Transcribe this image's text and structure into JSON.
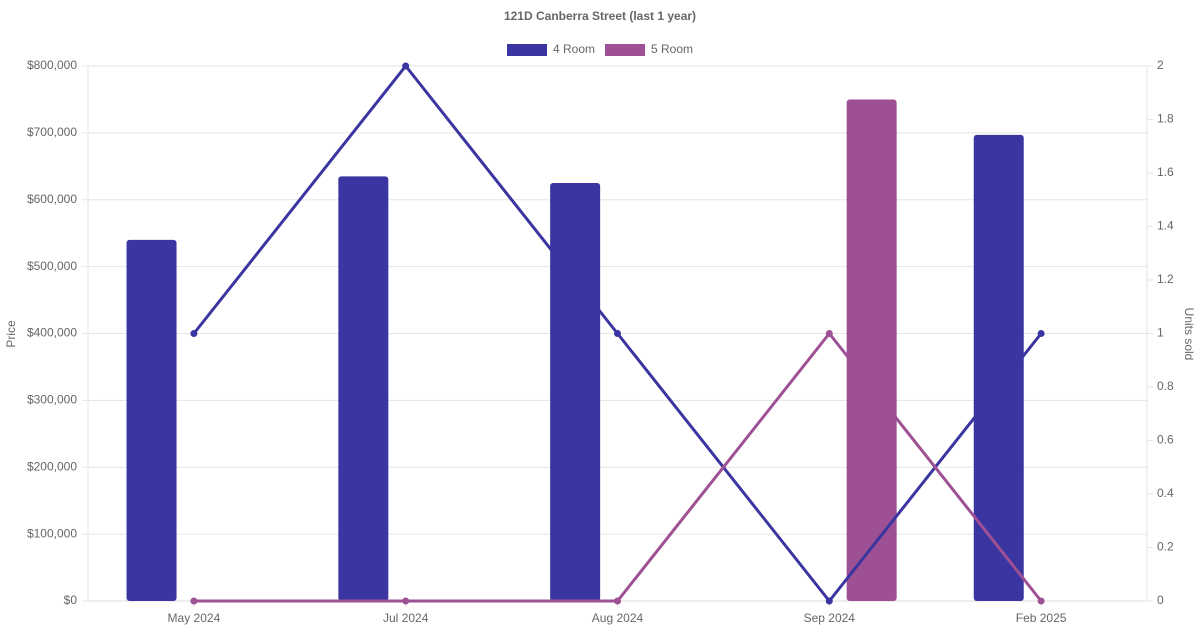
{
  "chart_data": {
    "type": "bar-line",
    "title": "121D Canberra Street (last 1 year)",
    "y_label": "Price",
    "y2_label": "Units sold",
    "categories": [
      "May 2024",
      "Jul 2024",
      "Aug 2024",
      "Sep 2024",
      "Feb 2025"
    ],
    "series": [
      {
        "name": "4 Room",
        "color": "#3a35a0",
        "values": [
          540000,
          635000,
          625000,
          null,
          697000
        ],
        "y2_values": [
          1,
          2,
          1,
          0,
          1
        ]
      },
      {
        "name": "5 Room",
        "color": "#9e5094",
        "values": [
          null,
          null,
          null,
          750000,
          null
        ],
        "y2_values": [
          0,
          0,
          0,
          1,
          0
        ]
      }
    ],
    "ylim": [
      0,
      800000
    ],
    "yticks": [
      {
        "value": 0,
        "label": "$0"
      },
      {
        "value": 100000,
        "label": "$100,000"
      },
      {
        "value": 200000,
        "label": "$200,000"
      },
      {
        "value": 300000,
        "label": "$300,000"
      },
      {
        "value": 400000,
        "label": "$400,000"
      },
      {
        "value": 500000,
        "label": "$500,000"
      },
      {
        "value": 600000,
        "label": "$600,000"
      },
      {
        "value": 700000,
        "label": "$700,000"
      },
      {
        "value": 800000,
        "label": "$800,000"
      }
    ],
    "y2lim": [
      0,
      2
    ],
    "y2ticks": [
      0,
      0.2,
      0.4,
      0.6,
      0.8,
      1,
      1.2,
      1.4,
      1.6,
      1.8,
      2
    ],
    "grid": true,
    "legend": "top"
  }
}
